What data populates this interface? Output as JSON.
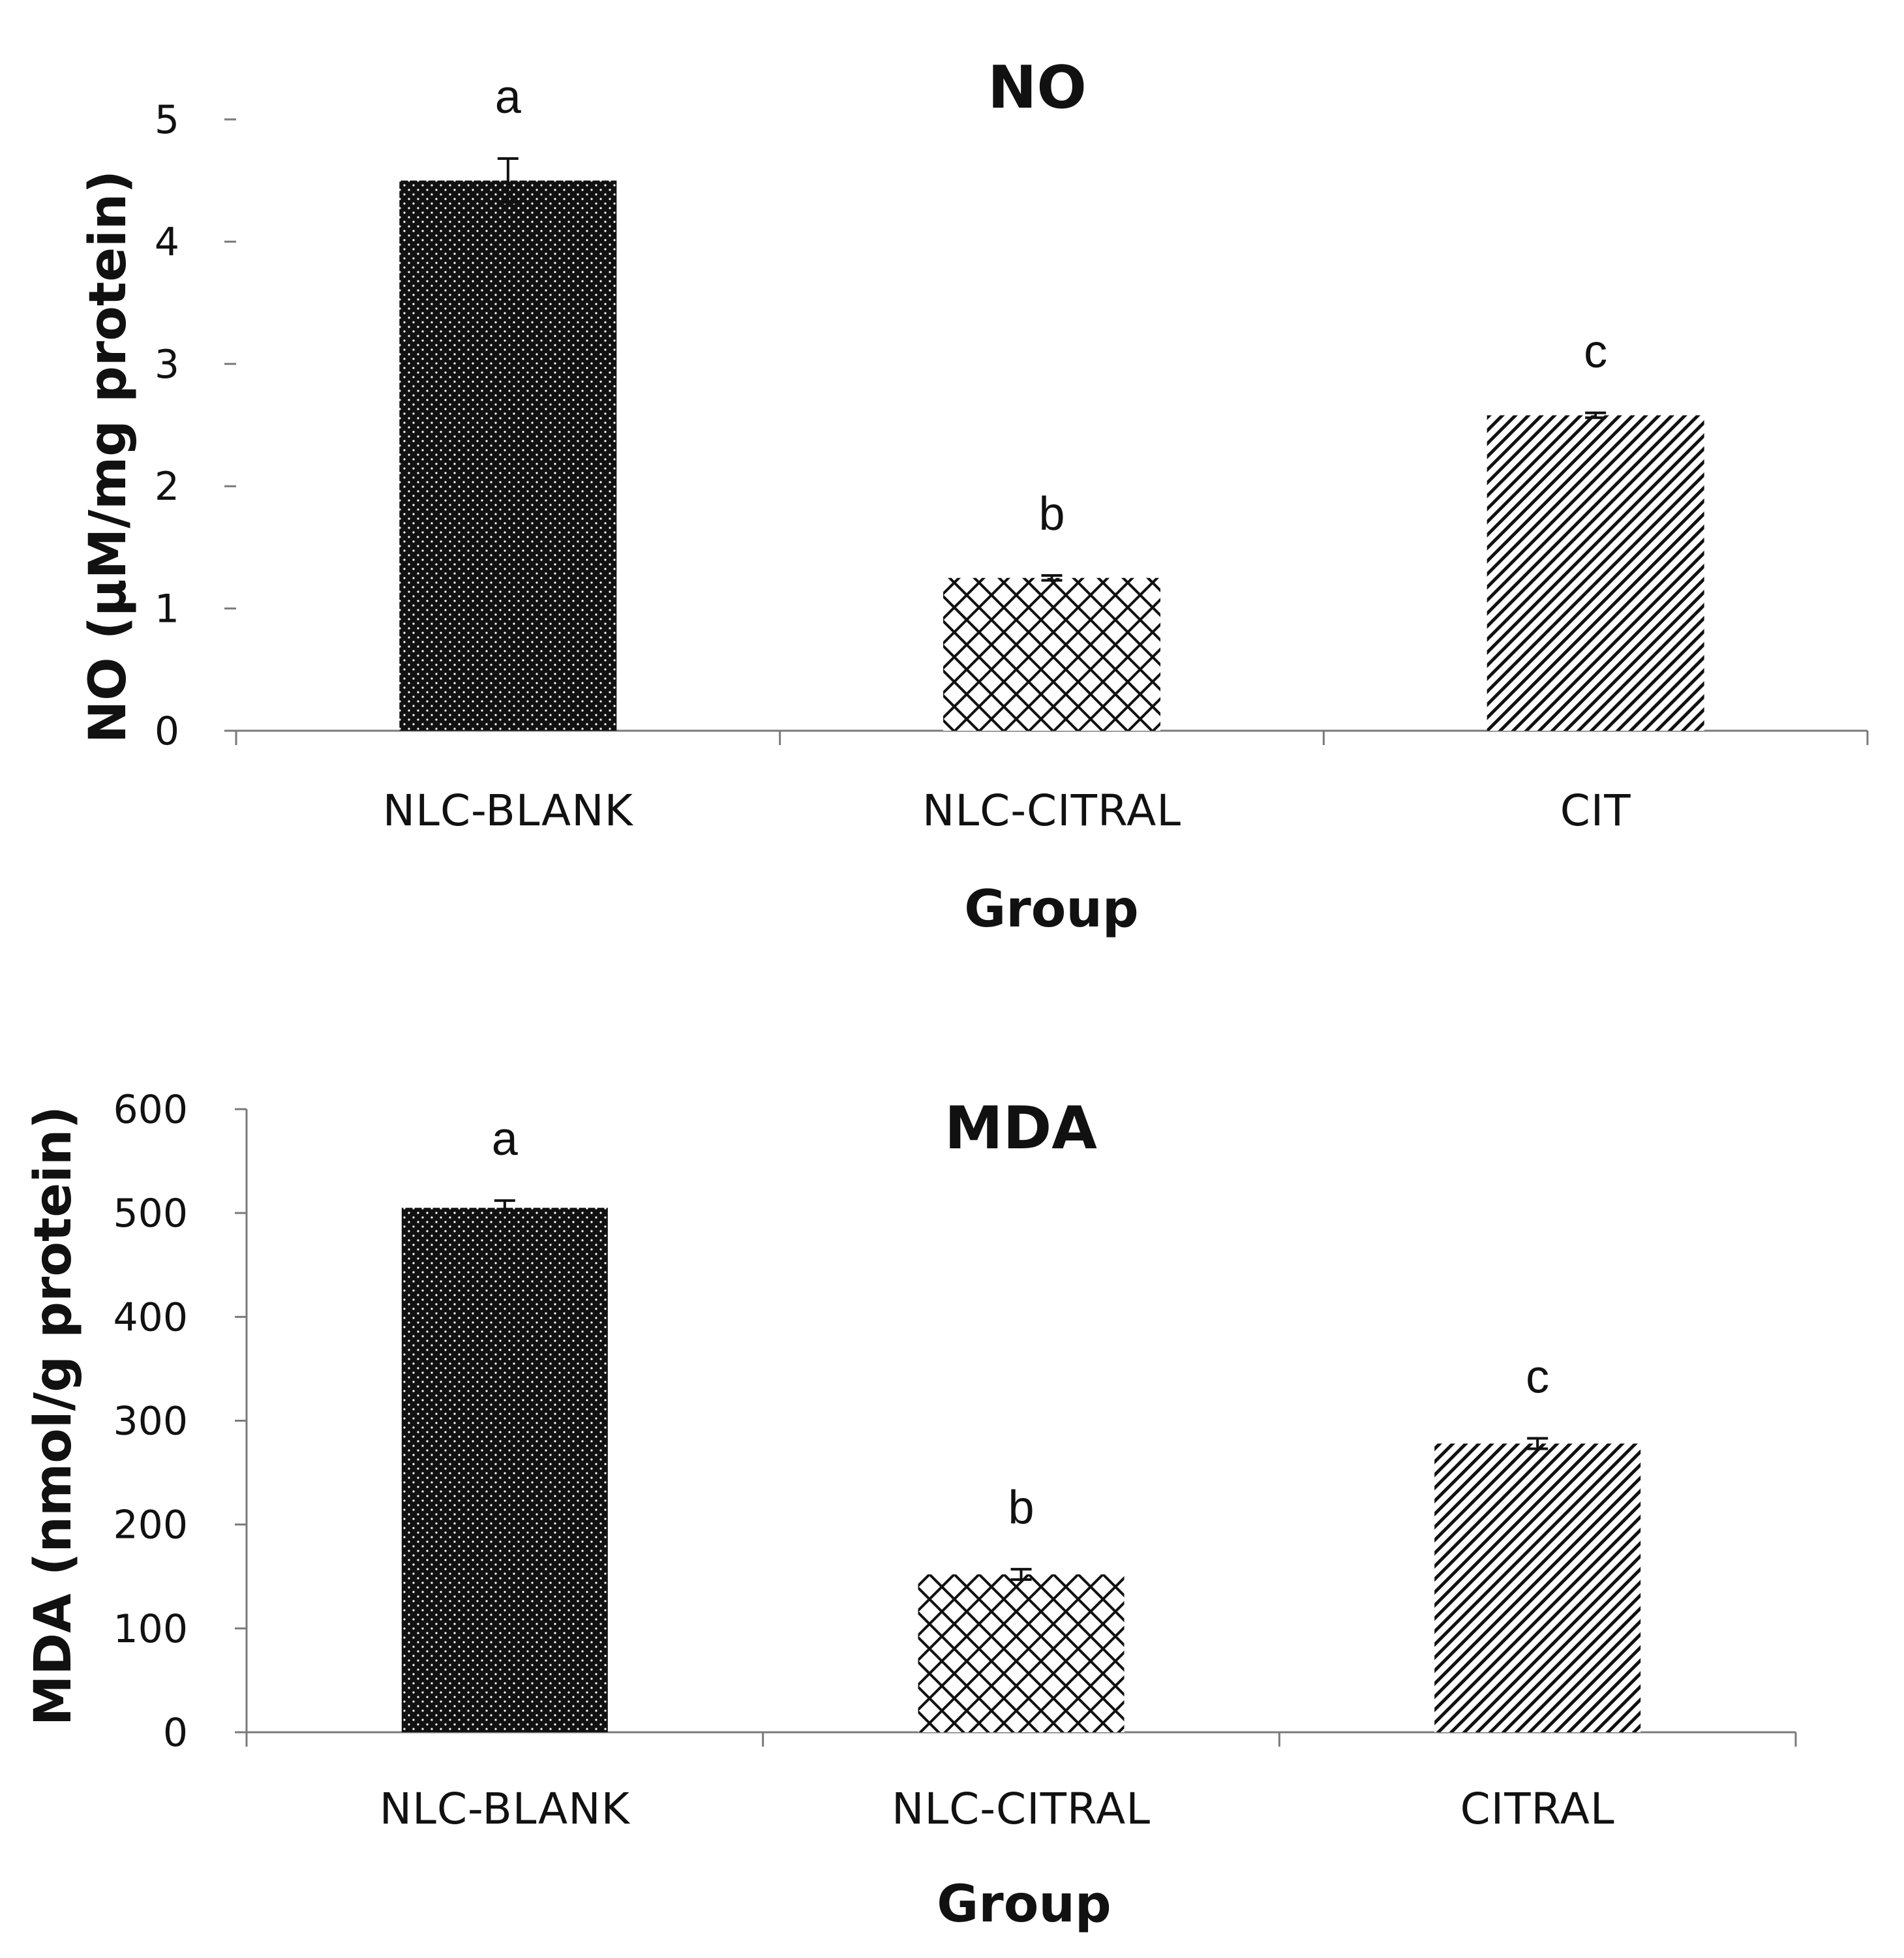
{
  "colors": {
    "ink": "#111111",
    "axis": "#7a7a7a",
    "background": "#ffffff"
  },
  "chart_data": [
    {
      "type": "bar",
      "title": "NO",
      "xlabel": "Group",
      "ylabel": "NO (μM/mg protein)",
      "categories": [
        "NLC-BLANK",
        "NLC-CITRAL",
        "CIT"
      ],
      "values": [
        4.5,
        1.25,
        2.58
      ],
      "errors": [
        0.18,
        0.02,
        0.02
      ],
      "patterns": [
        "dots",
        "crosshatch",
        "diagonal"
      ],
      "significance_letters": [
        "a",
        "b",
        "c"
      ],
      "yticks": [
        0,
        1,
        2,
        3,
        4,
        5
      ],
      "ylim": [
        0,
        5
      ],
      "grid": false,
      "legend": "none"
    },
    {
      "type": "bar",
      "title": "MDA",
      "xlabel": "Group",
      "ylabel": "MDA (nmol/g protein)",
      "categories": [
        "NLC-BLANK",
        "NLC-CITRAL",
        "CITRAL"
      ],
      "values": [
        505,
        152,
        278
      ],
      "errors": [
        7,
        5,
        5
      ],
      "patterns": [
        "dots",
        "crosshatch",
        "diagonal"
      ],
      "significance_letters": [
        "a",
        "b",
        "c"
      ],
      "yticks": [
        0,
        100,
        200,
        300,
        400,
        500,
        600
      ],
      "ylim": [
        0,
        600
      ],
      "grid": false,
      "legend": "none"
    }
  ]
}
